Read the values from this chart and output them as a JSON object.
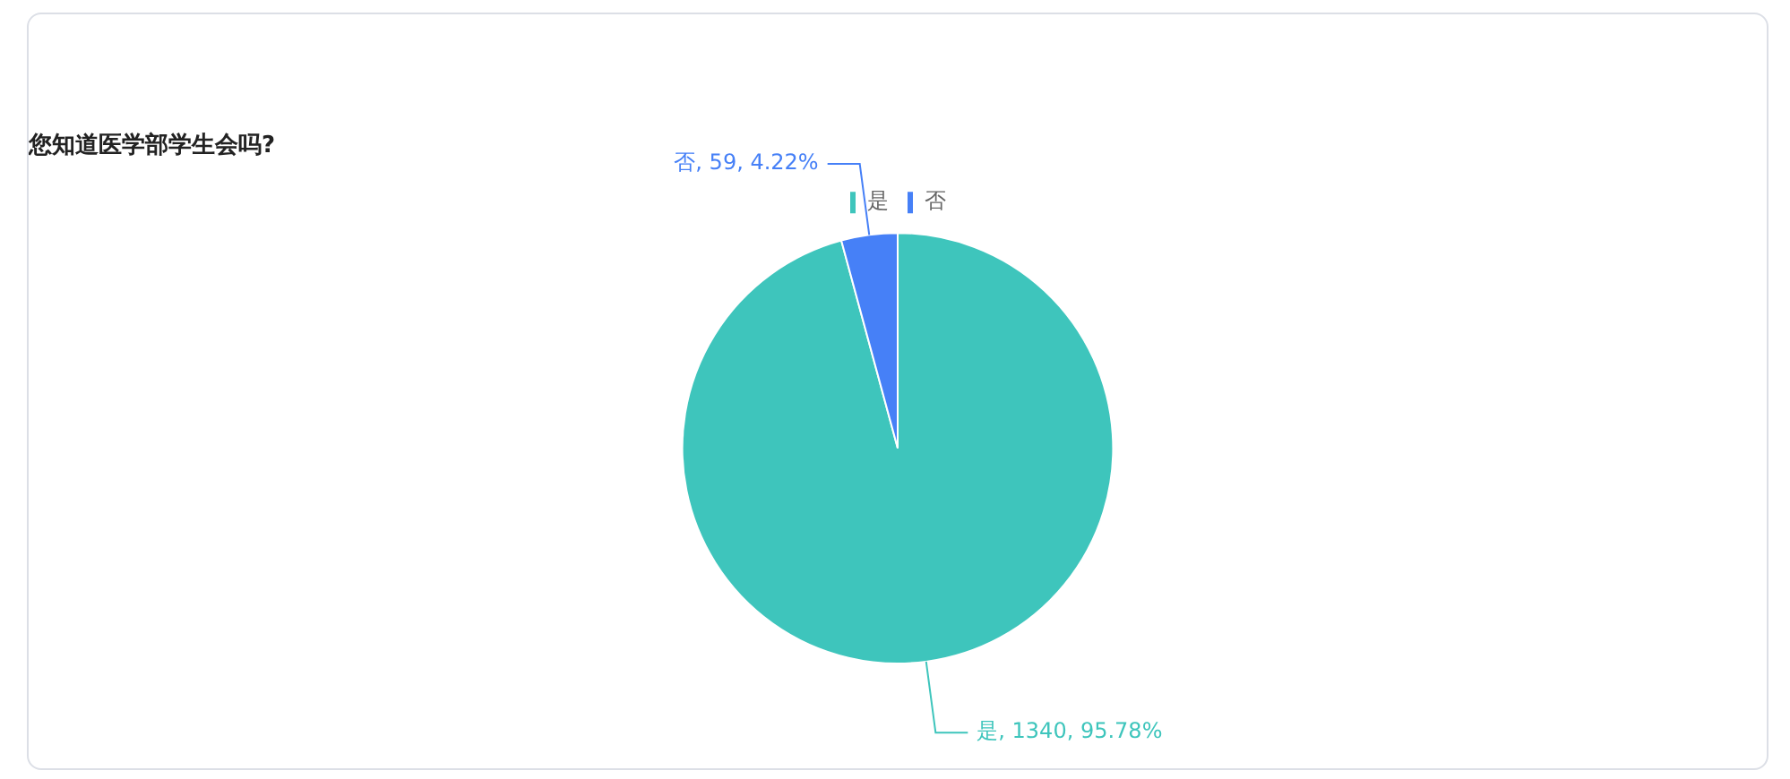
{
  "chart_data": {
    "type": "pie",
    "title": "您知道医学部学生会吗?",
    "categories": [
      "是",
      "否"
    ],
    "values": [
      1340,
      59
    ],
    "colors": [
      "#3ec5bc",
      "#4680f7"
    ],
    "value_labels": [
      "是, 1340, 95.78%",
      "否, 59, 4.22%"
    ],
    "legend": "top"
  }
}
